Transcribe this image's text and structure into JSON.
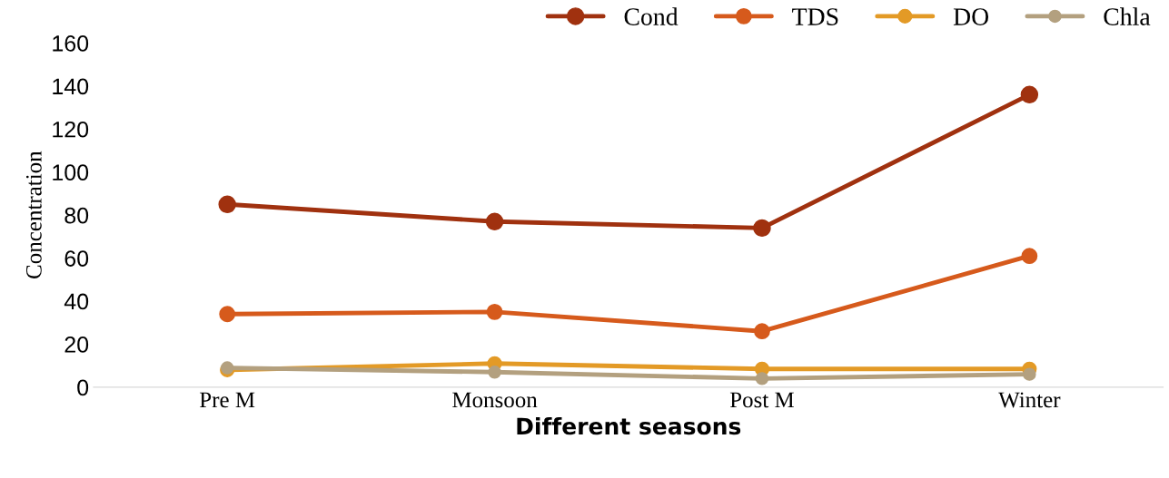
{
  "chart_data": {
    "type": "line",
    "xlabel": "Different seasons",
    "ylabel": "Concentration",
    "categories": [
      "Pre M",
      "Monsoon",
      "Post M",
      "Winter"
    ],
    "series": [
      {
        "name": "Cond",
        "color": "#a0310f",
        "values": [
          85,
          77,
          74,
          136
        ]
      },
      {
        "name": "TDS",
        "color": "#d65a1c",
        "values": [
          34,
          35,
          26,
          61
        ]
      },
      {
        "name": "DO",
        "color": "#e39a26",
        "values": [
          8,
          11,
          8.5,
          8.5
        ]
      },
      {
        "name": "Chla",
        "color": "#b3a07f",
        "values": [
          9,
          7,
          4,
          6
        ]
      }
    ],
    "ylim": [
      0,
      160
    ],
    "yticks": [
      0,
      20,
      40,
      60,
      80,
      100,
      120,
      140,
      160
    ],
    "grid": false,
    "legend": "top right",
    "marker": "circle",
    "line_style": "solid"
  }
}
